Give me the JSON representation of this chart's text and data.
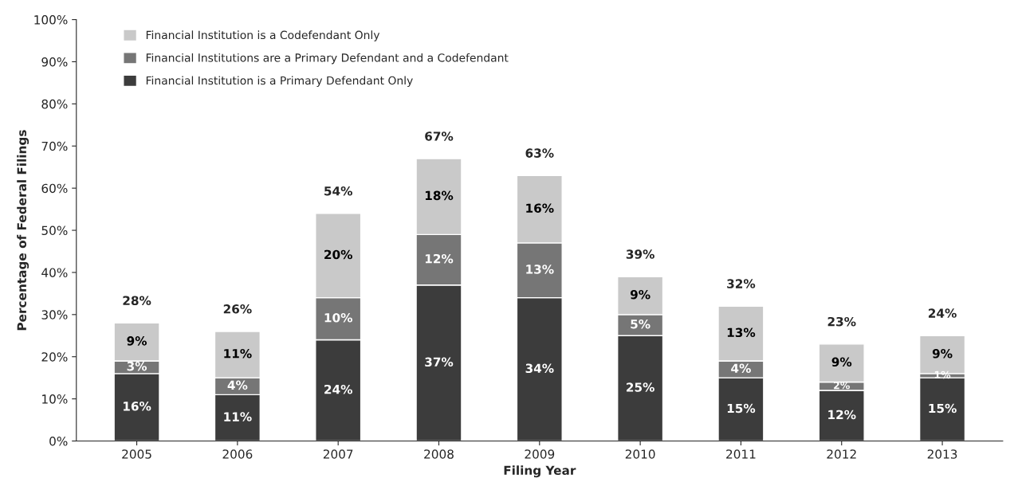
{
  "chart_data": {
    "type": "bar",
    "stacked": true,
    "xlabel": "Filing Year",
    "ylabel": "Percentage of Federal Filings",
    "categories": [
      "2005",
      "2006",
      "2007",
      "2008",
      "2009",
      "2010",
      "2011",
      "2012",
      "2013"
    ],
    "series": [
      {
        "name": "Financial Institution is a Primary Defendant Only",
        "color": "#3c3c3c",
        "values": [
          16,
          11,
          24,
          37,
          34,
          25,
          15,
          12,
          15
        ],
        "value_labels": [
          "16%",
          "11%",
          "24%",
          "37%",
          "34%",
          "25%",
          "15%",
          "12%",
          "15%"
        ]
      },
      {
        "name": "Financial Institutions are a Primary Defendant and a Codefendant",
        "color": "#767676",
        "values": [
          3,
          4,
          10,
          12,
          13,
          5,
          4,
          2,
          1
        ],
        "value_labels": [
          "3%",
          "4%",
          "10%",
          "12%",
          "13%",
          "5%",
          "4%",
          "2%",
          "1%"
        ]
      },
      {
        "name": "Financial Institution is a Codefendant Only",
        "color": "#c9c9c9",
        "values": [
          9,
          11,
          20,
          18,
          16,
          9,
          13,
          9,
          9
        ],
        "value_labels": [
          "9%",
          "11%",
          "20%",
          "18%",
          "16%",
          "9%",
          "13%",
          "9%",
          "9%"
        ]
      }
    ],
    "totals": [
      "28%",
      "26%",
      "54%",
      "67%",
      "63%",
      "39%",
      "32%",
      "23%",
      "24%"
    ],
    "ylim": [
      0,
      100
    ],
    "yticks": [
      {
        "value": 0,
        "label": "0%"
      },
      {
        "value": 10,
        "label": "10%"
      },
      {
        "value": 20,
        "label": "20%"
      },
      {
        "value": 30,
        "label": "30%"
      },
      {
        "value": 40,
        "label": "40%"
      },
      {
        "value": 50,
        "label": "50%"
      },
      {
        "value": 60,
        "label": "60%"
      },
      {
        "value": 70,
        "label": "70%"
      },
      {
        "value": 80,
        "label": "80%"
      },
      {
        "value": 90,
        "label": "90%"
      },
      {
        "value": 100,
        "label": "100%"
      }
    ],
    "legend": "top left"
  }
}
